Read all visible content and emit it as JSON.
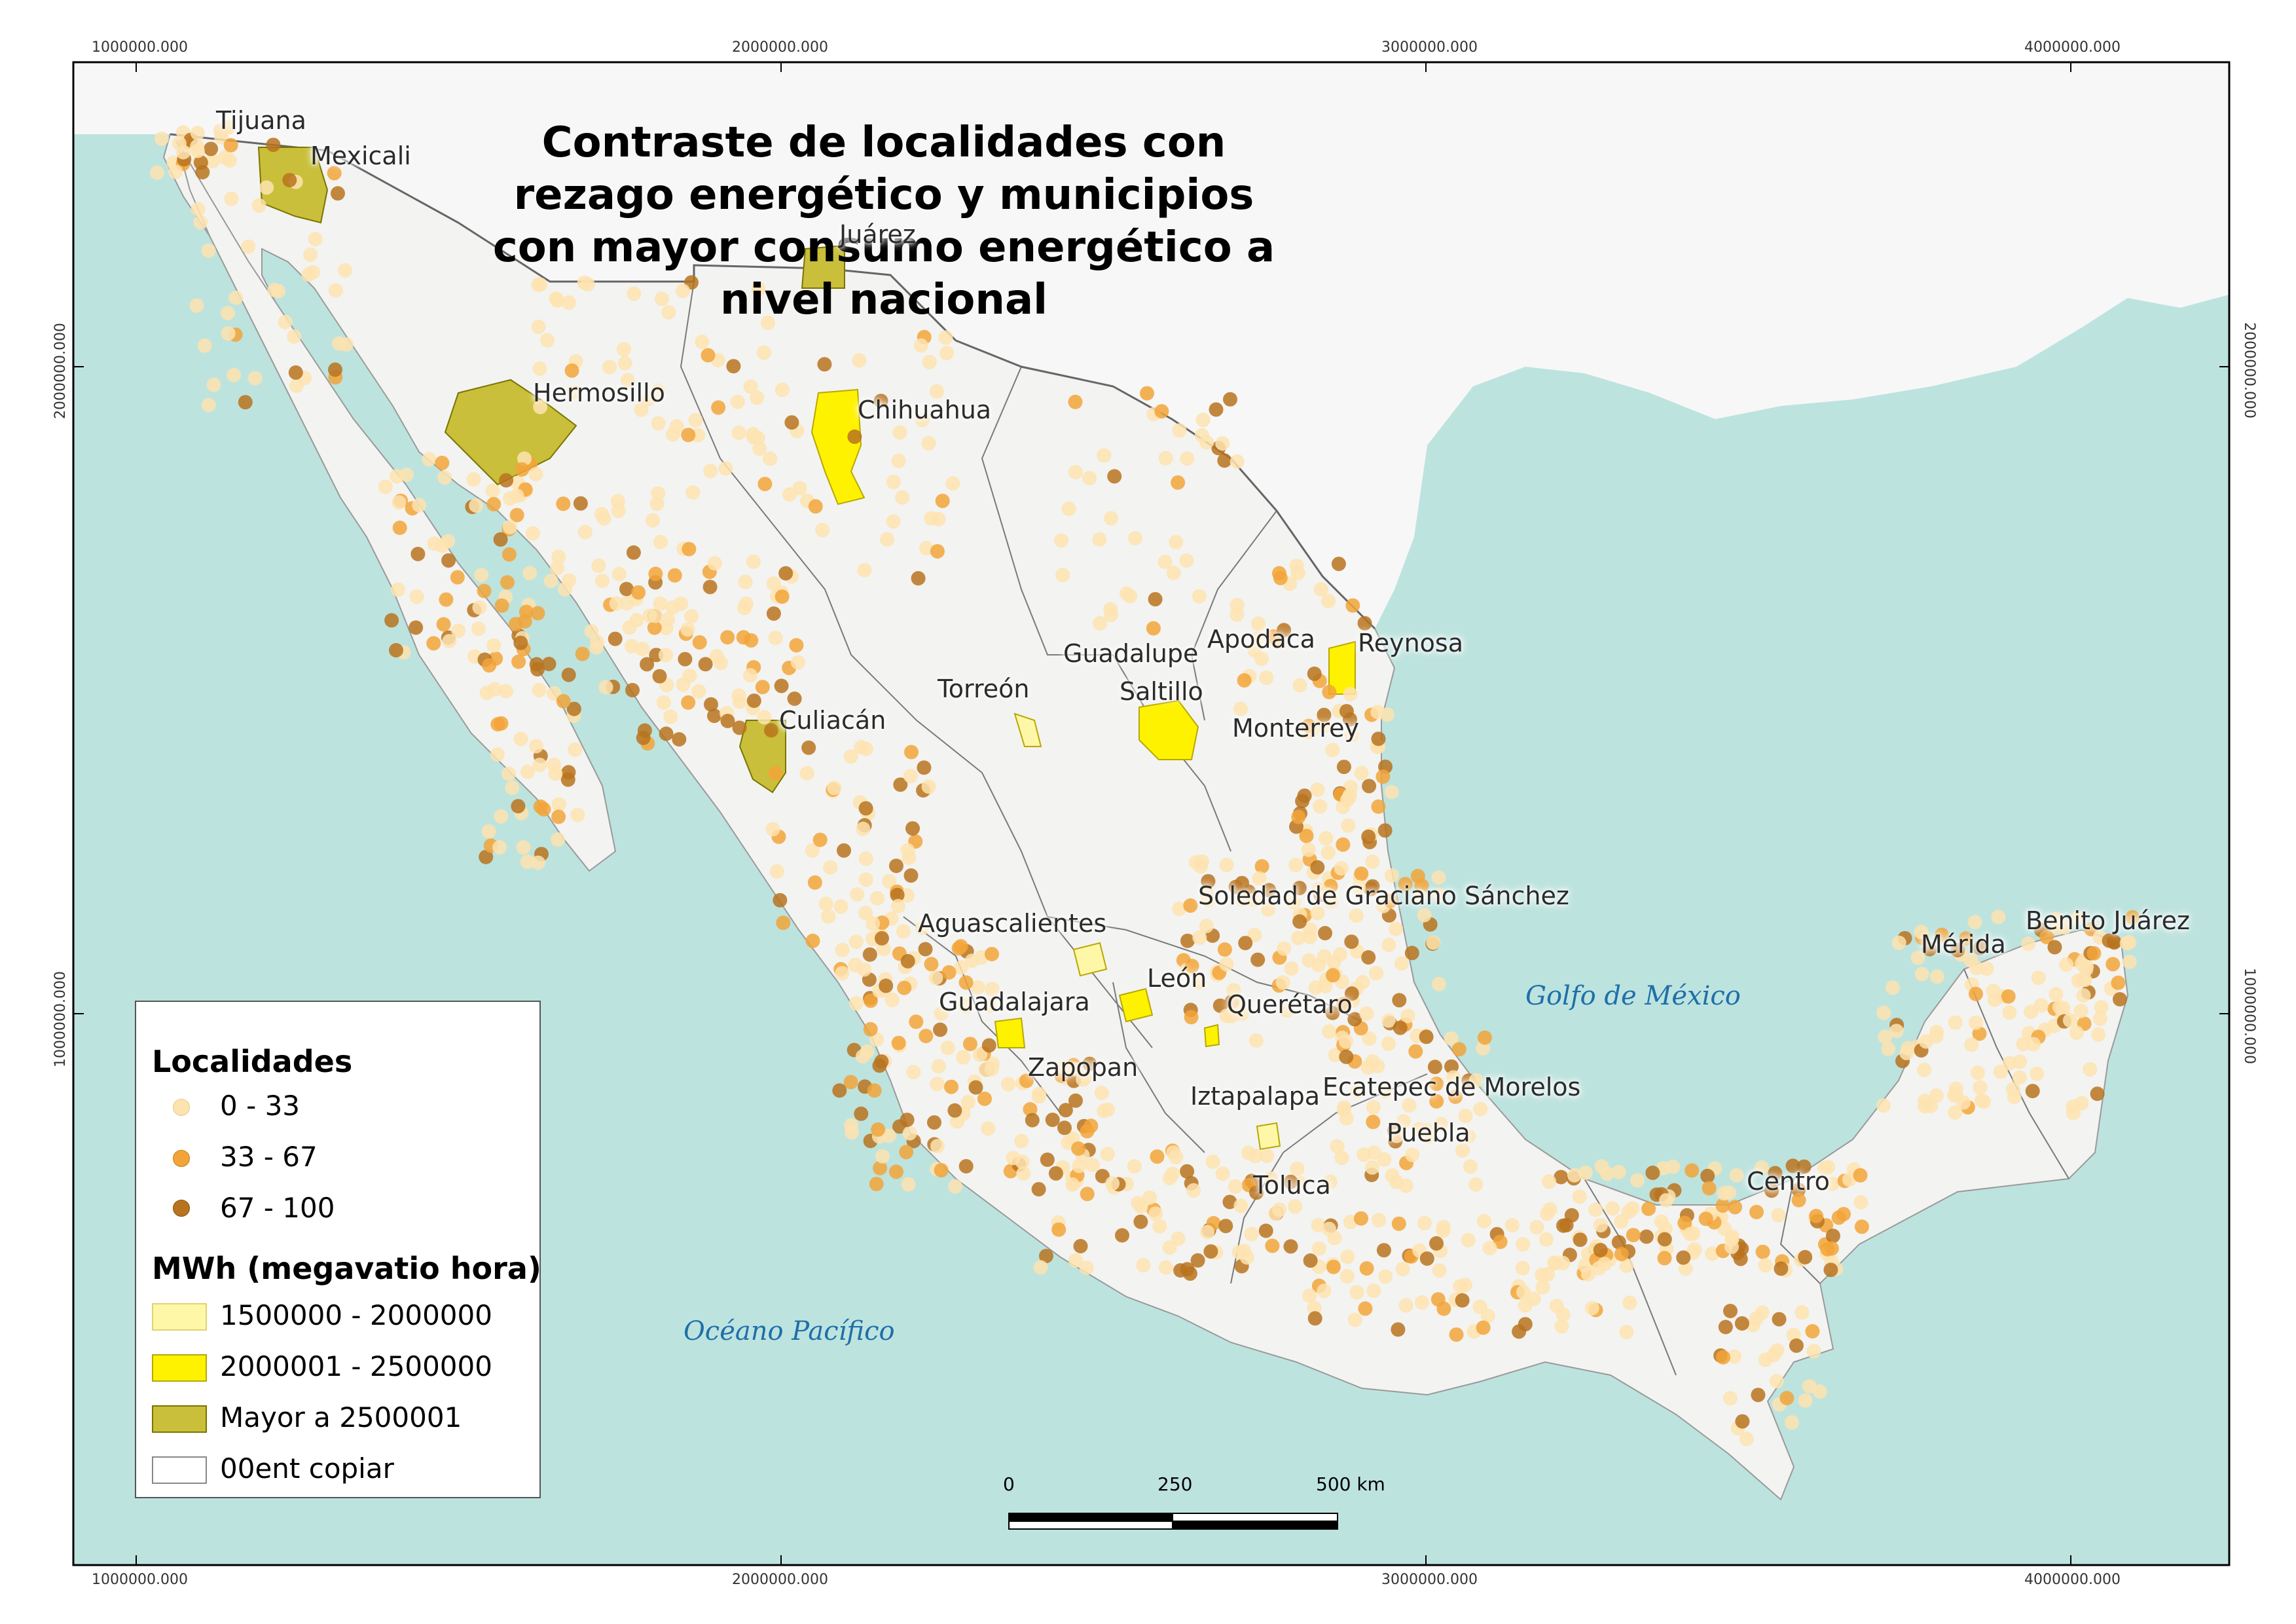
{
  "title": {
    "line1": "Contraste de localidades con rezago energético y municipios",
    "line2": "con mayor consumo energético a nivel nacional"
  },
  "grid": {
    "top": [
      "1000000.000",
      "2000000.000",
      "3000000.000",
      "4000000.000"
    ],
    "bottom": [
      "1000000.000",
      "2000000.000",
      "3000000.000",
      "4000000.000"
    ],
    "left": [
      "2000000.000",
      "1000000.000"
    ],
    "right": [
      "2000000.000",
      "1000000.000"
    ]
  },
  "cities": {
    "tijuana": "Tijuana",
    "mexicali": "Mexicali",
    "juarez": "Juárez",
    "hermosillo": "Hermosillo",
    "chihuahua": "Chihuahua",
    "culiacan": "Culiacán",
    "torreon": "Torreón",
    "guadalupe": "Guadalupe",
    "apodaca": "Apodaca",
    "reynosa": "Reynosa",
    "saltillo": "Saltillo",
    "monterrey": "Monterrey",
    "soledad": "Soledad de Graciano Sánchez",
    "aguascalientes": "Aguascalientes",
    "leon": "León",
    "guadalajara": "Guadalajara",
    "queretaro": "Querétaro",
    "zapopan": "Zapopan",
    "iztapalapa": "Iztapalapa",
    "ecatepec": "Ecatepec de Morelos",
    "puebla": "Puebla",
    "toluca": "Toluca",
    "centro": "Centro",
    "merida": "Mérida",
    "benito_juarez": "Benito Juárez"
  },
  "seas": {
    "golfo": "Golfo de México",
    "pacifico": "Océano Pacífico"
  },
  "legend": {
    "localidades_title": "Localidades",
    "localidades": [
      {
        "label": "0 - 33",
        "color": "#fde3b0"
      },
      {
        "label": "33 - 67",
        "color": "#f2a43a"
      },
      {
        "label": "67 - 100",
        "color": "#b8731f"
      }
    ],
    "mwh_title": "MWh (megavatio hora)",
    "mwh": [
      {
        "label": "1500000 - 2000000",
        "color": "#fff7a8"
      },
      {
        "label": "2000001 - 2500000",
        "color": "#fff200"
      },
      {
        "label": "Mayor a 2500001",
        "color": "#c9bf3a"
      },
      {
        "label": "00ent copiar",
        "color": "#ffffff"
      }
    ]
  },
  "scalebar": {
    "labels": [
      "0",
      "250",
      "500 km"
    ]
  },
  "colors": {
    "sea": "#bde3df",
    "land_mexico": "#f3f3f1",
    "land_usa": "#f7f7f7",
    "dot_low": "#fde3b0",
    "dot_mid": "#f2a43a",
    "dot_high": "#b8731f"
  }
}
